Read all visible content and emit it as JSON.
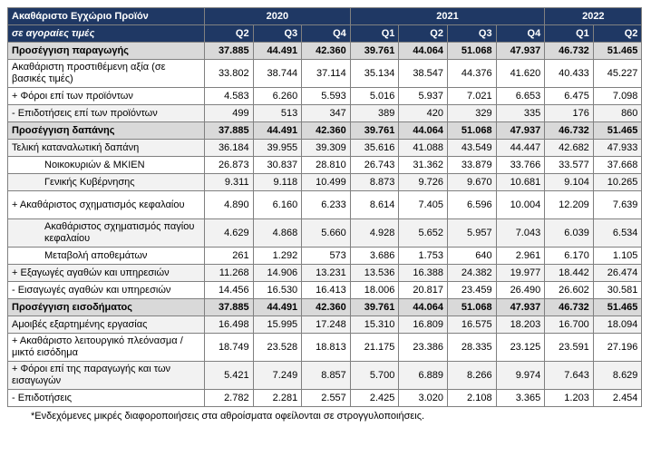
{
  "header": {
    "title": "Ακαθάριστο Εγχώριο Προϊόν",
    "subtitle": "σε αγοραίες τιμές",
    "years": [
      {
        "label": "2020"
      },
      {
        "label": "2021"
      },
      {
        "label": "2022"
      }
    ],
    "quarters": [
      "Q2",
      "Q3",
      "Q4",
      "Q1",
      "Q2",
      "Q3",
      "Q4",
      "Q1",
      "Q2"
    ]
  },
  "rows": [
    {
      "label": "Προσέγγιση παραγωγής",
      "values": [
        "37.885",
        "44.491",
        "42.360",
        "39.761",
        "44.064",
        "51.068",
        "47.937",
        "46.732",
        "51.465"
      ]
    },
    {
      "label": "Ακαθάριστη προστιθέμενη αξία (σε βασικές τιμές)",
      "values": [
        "33.802",
        "38.744",
        "37.114",
        "35.134",
        "38.547",
        "44.376",
        "41.620",
        "40.433",
        "45.227"
      ]
    },
    {
      "label": "+  Φόροι επί των προϊόντων",
      "values": [
        "4.583",
        "6.260",
        "5.593",
        "5.016",
        "5.937",
        "7.021",
        "6.653",
        "6.475",
        "7.098"
      ]
    },
    {
      "label": "-   Επιδοτήσεις επί των προϊόντων",
      "values": [
        "499",
        "513",
        "347",
        "389",
        "420",
        "329",
        "335",
        "176",
        "860"
      ]
    },
    {
      "label": "Προσέγγιση δαπάνης",
      "values": [
        "37.885",
        "44.491",
        "42.360",
        "39.761",
        "44.064",
        "51.068",
        "47.937",
        "46.732",
        "51.465"
      ]
    },
    {
      "label": "Τελική καταναλωτική δαπάνη",
      "values": [
        "36.184",
        "39.955",
        "39.309",
        "35.616",
        "41.088",
        "43.549",
        "44.447",
        "42.682",
        "47.933"
      ]
    },
    {
      "label": "Νοικοκυριών & ΜΚΙΕΝ",
      "values": [
        "26.873",
        "30.837",
        "28.810",
        "26.743",
        "31.362",
        "33.879",
        "33.766",
        "33.577",
        "37.668"
      ]
    },
    {
      "label": "Γενικής Κυβέρνησης",
      "values": [
        "9.311",
        "9.118",
        "10.499",
        "8.873",
        "9.726",
        "9.670",
        "10.681",
        "9.104",
        "10.265"
      ]
    },
    {
      "label": "+ Ακαθάριστος σχηματισμός κεφαλαίου",
      "values": [
        "4.890",
        "6.160",
        "6.233",
        "8.614",
        "7.405",
        "6.596",
        "10.004",
        "12.209",
        "7.639"
      ]
    },
    {
      "label": "Ακαθάριστος σχηματισμός παγίου κεφαλαίου",
      "values": [
        "4.629",
        "4.868",
        "5.660",
        "4.928",
        "5.652",
        "5.957",
        "7.043",
        "6.039",
        "6.534"
      ]
    },
    {
      "label": "Μεταβολή αποθεμάτων",
      "values": [
        "261",
        "1.292",
        "573",
        "3.686",
        "1.753",
        "640",
        "2.961",
        "6.170",
        "1.105"
      ]
    },
    {
      "label": "+ Εξαγωγές αγαθών και υπηρεσιών",
      "values": [
        "11.268",
        "14.906",
        "13.231",
        "13.536",
        "16.388",
        "24.382",
        "19.977",
        "18.442",
        "26.474"
      ]
    },
    {
      "label": "-  Εισαγωγές αγαθών και υπηρεσιών",
      "values": [
        "14.456",
        "16.530",
        "16.413",
        "18.006",
        "20.817",
        "23.459",
        "26.490",
        "26.602",
        "30.581"
      ]
    },
    {
      "label": "Προσέγγιση εισοδήματος",
      "values": [
        "37.885",
        "44.491",
        "42.360",
        "39.761",
        "44.064",
        "51.068",
        "47.937",
        "46.732",
        "51.465"
      ]
    },
    {
      "label": "Αμοιβές εξαρτημένης εργασίας",
      "values": [
        "16.498",
        "15.995",
        "17.248",
        "15.310",
        "16.809",
        "16.575",
        "18.203",
        "16.700",
        "18.094"
      ]
    },
    {
      "label": "+ Ακαθάριστο λειτουργικό πλεόνασμα / μικτό εισόδημα",
      "values": [
        "18.749",
        "23.528",
        "18.813",
        "21.175",
        "23.386",
        "28.335",
        "23.125",
        "23.591",
        "27.196"
      ]
    },
    {
      "label": "+ Φόροι επί της παραγωγής και των εισαγωγών",
      "values": [
        "5.421",
        "7.249",
        "8.857",
        "5.700",
        "6.889",
        "8.266",
        "9.974",
        "7.643",
        "8.629"
      ]
    },
    {
      "label": "- Επιδοτήσεις",
      "values": [
        "2.782",
        "2.281",
        "2.557",
        "2.425",
        "3.020",
        "2.108",
        "3.365",
        "1.203",
        "2.454"
      ]
    }
  ],
  "footnote": "*Ενδεχόμενες μικρές διαφοροποιήσεις στα αθροίσματα οφείλονται σε στρογγυλοποιήσεις."
}
